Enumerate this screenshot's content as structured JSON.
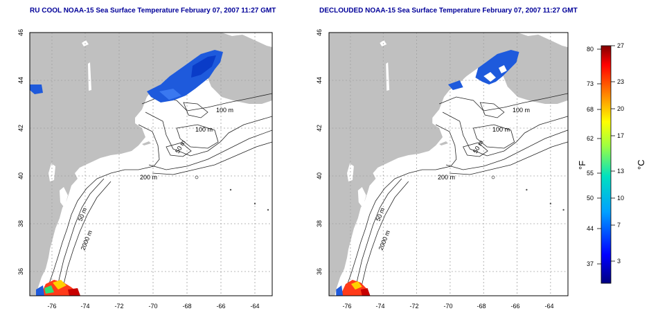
{
  "titles": {
    "left": "RU COOL NOAA-15 Sea Surface Temperature February 07, 2007 11:27 GMT",
    "right": "DECLOUDED NOAA-15 Sea Surface Temperature February 07, 2007 11:27 GMT"
  },
  "axes": {
    "lon_ticks": [
      "-76",
      "-74",
      "-72",
      "-70",
      "-68",
      "-66",
      "-64"
    ],
    "lat_ticks": [
      "46",
      "44",
      "42",
      "40",
      "38",
      "36"
    ]
  },
  "contour_labels": {
    "c100a": "100 m",
    "c100b": "100 m",
    "c50a": "50 m",
    "c200": "200 m",
    "c50b": "50 m",
    "c2000": "2000 m"
  },
  "colorbar": {
    "f_label": "°F",
    "c_label": "°C",
    "f_ticks": [
      "80",
      "73",
      "68",
      "62",
      "55",
      "50",
      "44",
      "37"
    ],
    "c_ticks": [
      "27",
      "23",
      "20",
      "17",
      "13",
      "10",
      "7",
      "3"
    ]
  },
  "colors": {
    "land": "#c0c0c0",
    "ocean": "#ffffff",
    "sst_cold": "#1e5adc",
    "title": "#000099"
  }
}
